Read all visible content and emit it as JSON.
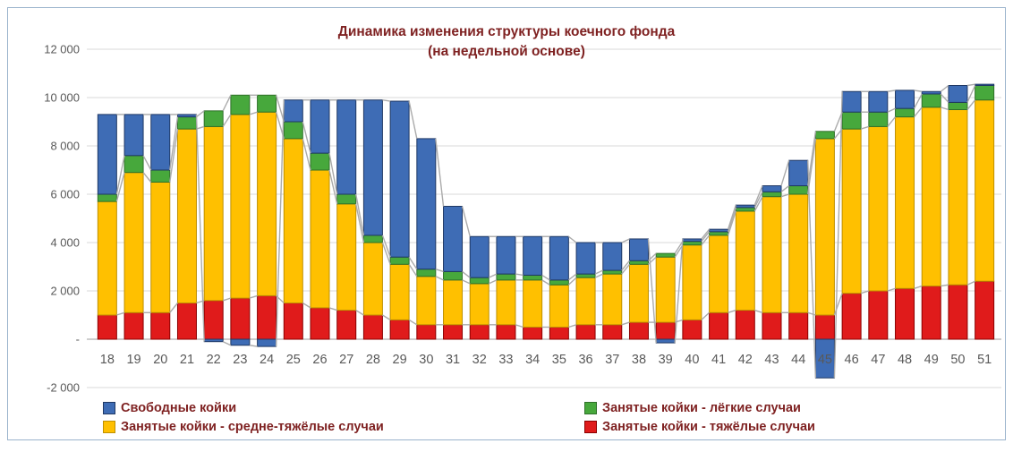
{
  "chart_data": {
    "type": "bar",
    "stacked": true,
    "title_line1": "Динамика изменения структуры коечного фонда",
    "title_line2": "(на недельной основе)",
    "xlabel": "",
    "ylabel": "",
    "grid": true,
    "legend_position": "bottom",
    "ylim": [
      -2000,
      12000
    ],
    "ytick_step": 2000,
    "yticks": [
      {
        "value": 12000,
        "label": "12 000"
      },
      {
        "value": 10000,
        "label": "10 000"
      },
      {
        "value": 8000,
        "label": "8 000"
      },
      {
        "value": 6000,
        "label": "6 000"
      },
      {
        "value": 4000,
        "label": "4 000"
      },
      {
        "value": 2000,
        "label": "2 000"
      },
      {
        "value": 0,
        "label": "-"
      },
      {
        "value": -2000,
        "label": "-2 000"
      }
    ],
    "categories": [
      18,
      19,
      20,
      21,
      22,
      23,
      24,
      25,
      26,
      27,
      28,
      29,
      30,
      31,
      32,
      33,
      34,
      35,
      36,
      37,
      38,
      39,
      40,
      41,
      42,
      43,
      44,
      45,
      46,
      47,
      48,
      49,
      50,
      51
    ],
    "series": [
      {
        "id": "severe",
        "name": "Занятые койки - тяжёлые случаи",
        "color": "#E01B1B",
        "border": "#8B0000",
        "values": [
          1000,
          1100,
          1100,
          1500,
          1600,
          1700,
          1800,
          1500,
          1300,
          1200,
          1000,
          800,
          600,
          600,
          600,
          600,
          500,
          500,
          600,
          600,
          700,
          700,
          800,
          1100,
          1200,
          1100,
          1100,
          1000,
          1900,
          2000,
          2100,
          2200,
          2250,
          2400
        ]
      },
      {
        "id": "medium",
        "name": "Занятые койки - средне-тяжёлые случаи",
        "color": "#FFC000",
        "border": "#BF9000",
        "values": [
          4700,
          5800,
          5400,
          7200,
          7200,
          7600,
          7600,
          6800,
          5700,
          4400,
          3000,
          2300,
          2000,
          1850,
          1700,
          1850,
          1950,
          1750,
          1950,
          2100,
          2400,
          2700,
          3100,
          3200,
          4100,
          4800,
          4900,
          7300,
          6800,
          6800,
          7100,
          7400,
          7250,
          7500
        ]
      },
      {
        "id": "light",
        "name": "Занятые койки - лёгкие случаи",
        "color": "#47A83C",
        "border": "#2F7029",
        "values": [
          300,
          700,
          500,
          500,
          650,
          800,
          700,
          700,
          700,
          400,
          300,
          300,
          300,
          350,
          250,
          250,
          200,
          200,
          150,
          150,
          150,
          150,
          150,
          150,
          150,
          200,
          350,
          300,
          700,
          600,
          350,
          550,
          300,
          600
        ]
      },
      {
        "id": "free",
        "name": "Свободные койки",
        "color": "#3E6CB5",
        "border": "#1F3864",
        "values": [
          3300,
          1700,
          2300,
          100,
          -100,
          -250,
          -300,
          900,
          2200,
          3900,
          5600,
          6450,
          5400,
          2700,
          1700,
          1550,
          1600,
          1800,
          1300,
          1150,
          900,
          -150,
          100,
          100,
          100,
          250,
          1050,
          -1600,
          850,
          850,
          750,
          100,
          700,
          50
        ]
      }
    ],
    "legend_order": [
      "free",
      "light",
      "medium",
      "severe"
    ],
    "series_line_color": "#ABABAB",
    "grid_color": "#D9D9D9",
    "axis_line_color": "#9C9C9C",
    "text_colors": {
      "title": "#7F2222",
      "legend": "#7F2222",
      "axis": "#595959"
    }
  }
}
